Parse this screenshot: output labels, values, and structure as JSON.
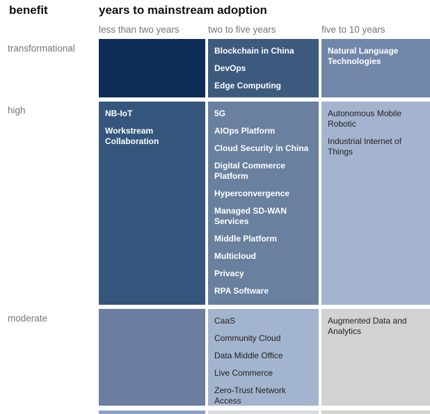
{
  "palette": {
    "tier_darkest": "#0d2c57",
    "tier_dark": "#3d5a7e",
    "tier_medium_dark": "#35567c",
    "tier_medium": "#69809f",
    "tier_medium_2": "#7187a9",
    "tier_light": "#a4b4ce",
    "tier_gray": "#d2d2d2",
    "header_text": "#111111",
    "axis_text": "#757575"
  },
  "chart_data": {
    "type": "heatmap",
    "row_axis_label": "benefit",
    "title": "years to mainstream adoption",
    "columns": [
      "less than two years",
      "two to five years",
      "five to 10 years"
    ],
    "rows": [
      "transformational",
      "high",
      "moderate"
    ],
    "legend_position": "none",
    "cells": [
      {
        "row": "transformational",
        "column": "less than two years",
        "color": "#0d2c57",
        "text_style": "white-bold",
        "items": []
      },
      {
        "row": "transformational",
        "column": "two to five years",
        "color": "#3d5a7e",
        "text_style": "white-bold",
        "items": [
          "Blockchain in China",
          "DevOps",
          "Edge Computing"
        ]
      },
      {
        "row": "transformational",
        "column": "five to 10 years",
        "color": "#7187a9",
        "text_style": "white-bold",
        "items": [
          "Natural Language Technologies"
        ]
      },
      {
        "row": "high",
        "column": "less than two years",
        "color": "#35567c",
        "text_style": "white-bold",
        "items": [
          "NB-IoT",
          "Workstream Collaboration"
        ]
      },
      {
        "row": "high",
        "column": "two to five years",
        "color": "#69809f",
        "text_style": "white-bold",
        "items": [
          "5G",
          "AIOps Platform",
          "Cloud Security in China",
          "Digital Commerce Platform",
          "Hyperconvergence",
          "Managed SD-WAN Services",
          "Middle Platform",
          "Multicloud",
          "Privacy",
          "RPA Software"
        ]
      },
      {
        "row": "high",
        "column": "five to 10 years",
        "color": "#a4b4ce",
        "text_style": "dark-regular",
        "items": [
          "Autonomous Mobile Robotic",
          "Industrial Internet of Things"
        ]
      },
      {
        "row": "moderate",
        "column": "less than two years",
        "color": "#6b7ea1",
        "text_style": "dark-regular",
        "items": []
      },
      {
        "row": "moderate",
        "column": "two to five years",
        "color": "#a3b4ce",
        "text_style": "dark-regular",
        "items": [
          "CaaS",
          "Community Cloud",
          "Data Middle Office",
          "Live Commerce",
          "Zero-Trust Network Access"
        ]
      },
      {
        "row": "moderate",
        "column": "five to 10 years",
        "color": "#d2d2d2",
        "text_style": "dark-regular",
        "items": [
          "Augmented Data and Analytics"
        ]
      }
    ],
    "partial_row_colors": [
      "#8ba2c2",
      "#d9dce1",
      "#d3d3d1"
    ]
  }
}
